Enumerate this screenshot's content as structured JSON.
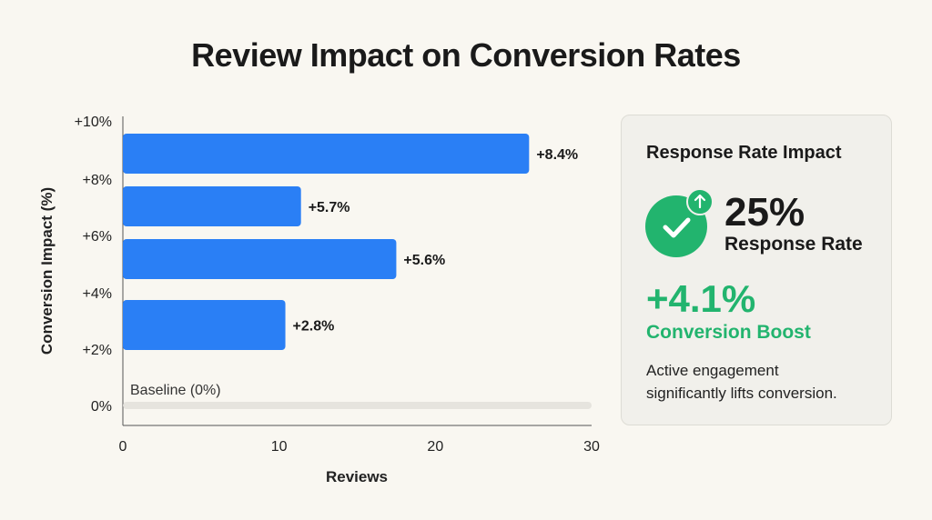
{
  "chart_data": {
    "type": "bar",
    "orientation": "horizontal",
    "title": "Review Impact on Conversion Rates",
    "xlabel": "Reviews",
    "ylabel": "Conversion Impact (%)",
    "xlim": [
      0,
      30
    ],
    "x_ticks": [
      "0",
      "10",
      "20",
      "30"
    ],
    "y_ticks": [
      "+10%",
      "+8%",
      "+6%",
      "+4%",
      "+2%",
      "0%"
    ],
    "bars": [
      {
        "reviews": 26,
        "label": "+8.4%"
      },
      {
        "reviews": 11.4,
        "label": "+5.7%"
      },
      {
        "reviews": 17.5,
        "label": "+5.6%"
      },
      {
        "reviews": 10.4,
        "label": "+2.8%"
      }
    ],
    "baseline_label": "Baseline (0%)",
    "bar_color": "#2a7ff5",
    "baseline_color": "#e6e4de",
    "grid": false
  },
  "panel": {
    "title": "Response Rate Impact",
    "icon": "check-circle-with-up-arrow",
    "rate_value": "25%",
    "rate_label": "Response Rate",
    "boost_value": "+4.1%",
    "boost_label": "Conversion Boost",
    "description_line1": "Active engagement",
    "description_line2": "significantly lifts conversion.",
    "accent_color": "#22b46e"
  }
}
